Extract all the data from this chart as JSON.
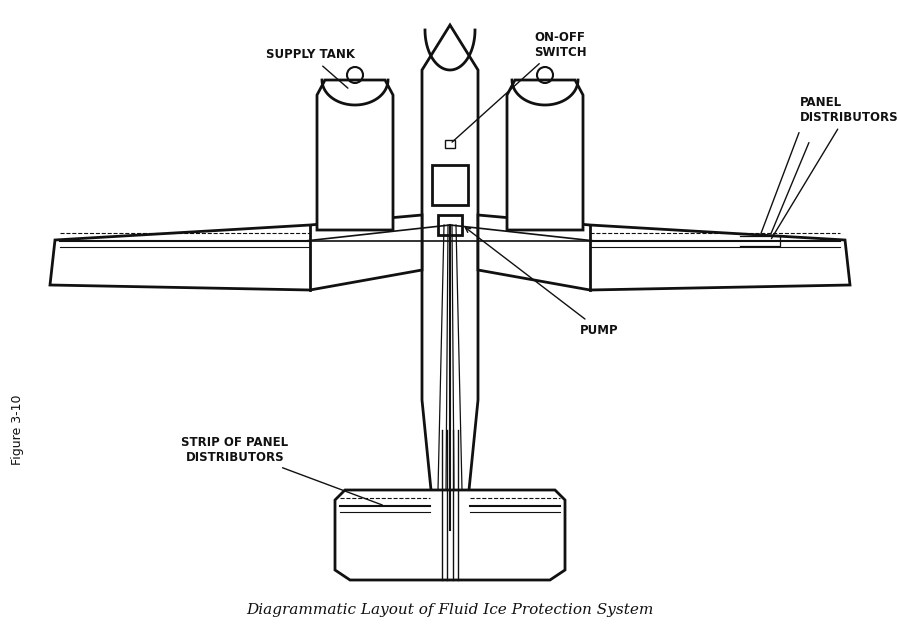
{
  "title": "Diagrammatic Layout of Fluid Ice Protection System",
  "figure_label": "Figure 3-10",
  "bg_color": "#ffffff",
  "line_color": "#111111",
  "labels": {
    "supply_tank": "SUPPLY TANK",
    "on_off_switch": "ON-OFF\nSWITCH",
    "panel_distributors": "PANEL\nDISTRIBUTORS",
    "pump": "PUMP",
    "strip_of_panel": "STRIP OF PANEL\nDISTRIBUTORS"
  },
  "figsize": [
    8.99,
    6.29
  ],
  "dpi": 100
}
